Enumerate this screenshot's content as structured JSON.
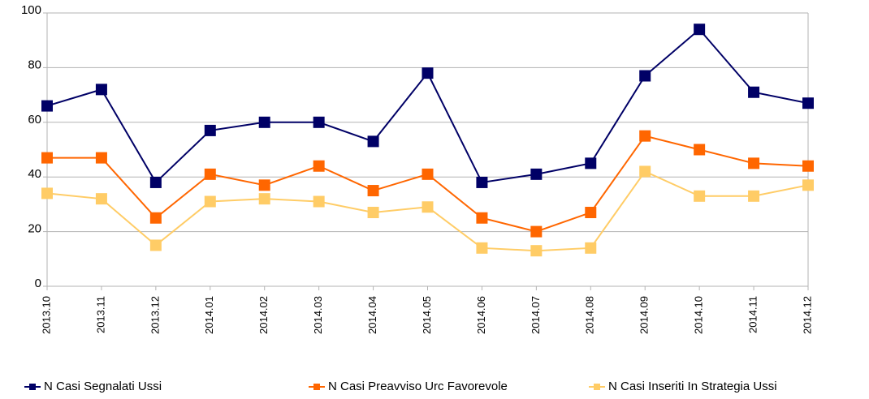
{
  "chart_data": {
    "type": "line",
    "categories": [
      "2013.10",
      "2013.11",
      "2013.12",
      "2014.01",
      "2014.02",
      "2014.03",
      "2014.04",
      "2014.05",
      "2014.06",
      "2014.07",
      "2014.08",
      "2014.09",
      "2014.10",
      "2014.11",
      "2014.12"
    ],
    "series": [
      {
        "name": "N Casi Segnalati Ussi",
        "color": "#000066",
        "values": [
          66,
          72,
          38,
          57,
          60,
          60,
          53,
          78,
          38,
          41,
          45,
          77,
          94,
          71,
          67
        ]
      },
      {
        "name": "N Casi Preavviso Urc Favorevole",
        "color": "#ff6600",
        "values": [
          47,
          47,
          25,
          41,
          37,
          44,
          35,
          41,
          25,
          20,
          27,
          55,
          50,
          45,
          44
        ]
      },
      {
        "name": "N Casi Inseriti In Strategia Ussi",
        "color": "#ffcc66",
        "values": [
          34,
          32,
          15,
          31,
          32,
          31,
          27,
          29,
          14,
          13,
          14,
          42,
          33,
          33,
          37
        ]
      }
    ],
    "ylim": [
      0,
      100
    ],
    "yticks": [
      0,
      20,
      40,
      60,
      80,
      100
    ],
    "grid": true,
    "legend": "bottom"
  }
}
